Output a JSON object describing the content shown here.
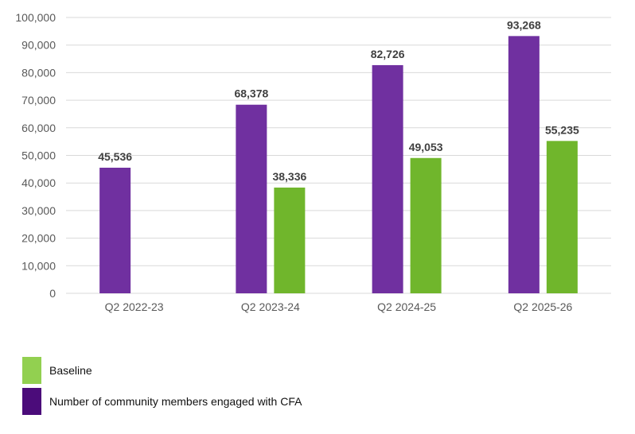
{
  "chart_data": {
    "type": "bar",
    "title": "",
    "xlabel": "",
    "ylabel": "",
    "categories": [
      "Q2 2022-23",
      "Q2 2023-24",
      "Q2 2024-25",
      "Q2 2025-26"
    ],
    "series": [
      {
        "name": "Number of community members engaged with CFA",
        "color": "#7030a0",
        "legend_color": "#4b0c7a",
        "values": [
          45536,
          68378,
          82726,
          93268
        ],
        "labels": [
          "45,536",
          "68,378",
          "82,726",
          "93,268"
        ]
      },
      {
        "name": "Baseline",
        "color": "#70b62c",
        "legend_color": "#92d050",
        "values": [
          null,
          38336,
          49053,
          55235
        ],
        "labels": [
          "",
          "38,336",
          "49,053",
          "55,235"
        ]
      }
    ],
    "ylim": [
      0,
      100000
    ],
    "yticks": [
      0,
      10000,
      20000,
      30000,
      40000,
      50000,
      60000,
      70000,
      80000,
      90000,
      100000
    ],
    "ytick_labels": [
      "0",
      "10,000",
      "20,000",
      "30,000",
      "40,000",
      "50,000",
      "60,000",
      "70,000",
      "80,000",
      "90,000",
      "100,000"
    ],
    "grid": true,
    "legend_position": "bottom-left",
    "legend": [
      {
        "label": "Baseline",
        "color": "#92d050"
      },
      {
        "label": "Number of community members engaged with CFA",
        "color": "#4b0c7a"
      }
    ]
  }
}
